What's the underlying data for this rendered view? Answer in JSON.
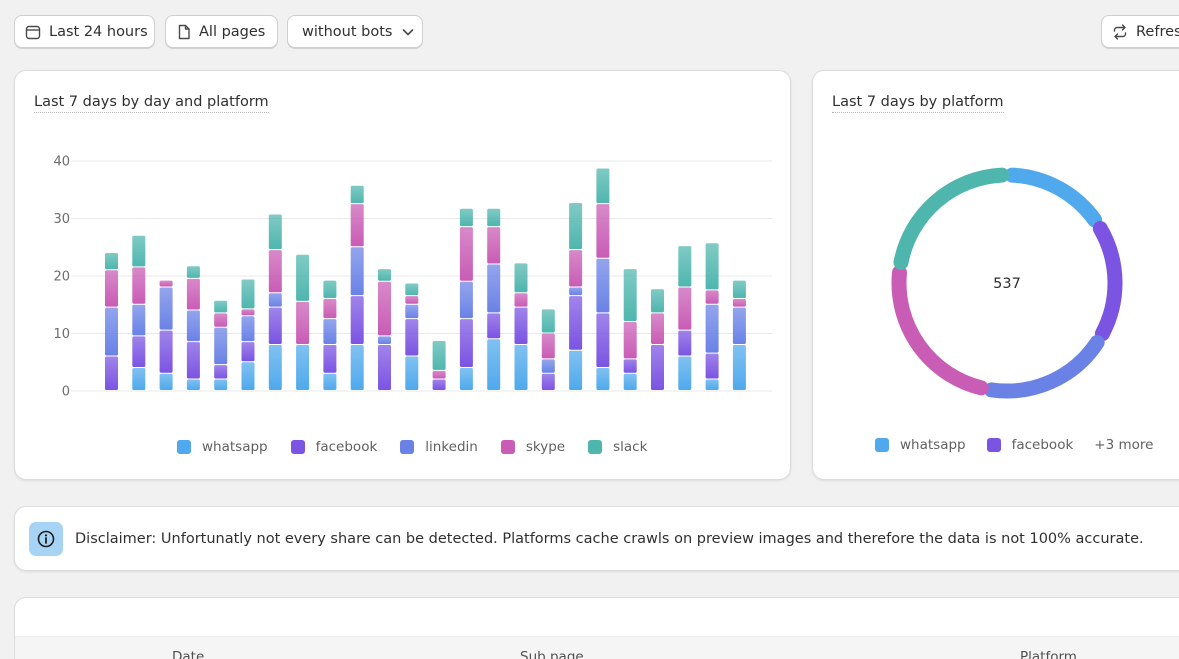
{
  "toolbar": {
    "range_label": "Last 24 hours",
    "pages_label": "All pages",
    "bots_label": "without bots",
    "refresh_label": "Refresh"
  },
  "bar_card": {
    "title": "Last 7 days by day and platform"
  },
  "donut_card": {
    "title": "Last 7 days by platform",
    "total": "537",
    "legend": [
      "whatsapp",
      "facebook"
    ],
    "more_label": "+3 more"
  },
  "colors": {
    "whatsapp": "#4fa9ec",
    "facebook": "#7b54e2",
    "linkedin": "#6a82e6",
    "skype": "#c95cb5",
    "slack": "#4fb6ae"
  },
  "disclaimer": {
    "text": "Disclaimer: Unfortunatly not every share can be detected. Platforms cache crawls on preview images and therefore the data is not 100% accurate."
  },
  "table": {
    "columns": [
      "Date",
      "Sub page",
      "Platform"
    ]
  },
  "chart_data": [
    {
      "type": "bar",
      "stacked": true,
      "title": "Last 7 days by day and platform",
      "ylim": [
        0,
        40
      ],
      "yticks": [
        0,
        10,
        20,
        30,
        40
      ],
      "grid": true,
      "legend_position": "bottom",
      "series": [
        {
          "name": "whatsapp",
          "values": [
            0,
            4,
            3,
            2,
            2,
            5,
            8,
            8,
            3,
            8,
            0,
            6,
            0,
            4,
            9,
            8,
            0,
            7,
            4,
            3,
            0,
            6,
            2,
            8
          ]
        },
        {
          "name": "facebook",
          "values": [
            6,
            5.5,
            7.5,
            6.5,
            2.5,
            3.5,
            6.5,
            0,
            5,
            8.5,
            8,
            6.5,
            2,
            8.5,
            4.5,
            6.5,
            3,
            9.5,
            9.5,
            2.5,
            8,
            4.5,
            4.5,
            0
          ]
        },
        {
          "name": "linkedin",
          "values": [
            8.5,
            5.5,
            7.5,
            5.5,
            6.5,
            4.5,
            2.5,
            0,
            4.5,
            8.5,
            1.5,
            2.5,
            0,
            6.5,
            8.5,
            0,
            2.5,
            1.5,
            9.5,
            0,
            0,
            0,
            8.5,
            6.5
          ]
        },
        {
          "name": "skype",
          "values": [
            6.5,
            6.5,
            1.2,
            5.5,
            2.5,
            1.2,
            7.5,
            7.5,
            3.5,
            7.5,
            9.5,
            1.5,
            1.5,
            9.5,
            6.5,
            2.5,
            4.5,
            6.5,
            9.5,
            6.5,
            5.5,
            7.5,
            2.5,
            1.5
          ]
        },
        {
          "name": "slack",
          "values": [
            3,
            5.5,
            0,
            2.2,
            2.2,
            5.2,
            6.2,
            8.2,
            3.2,
            3.2,
            2.2,
            2.2,
            5.2,
            3.2,
            3.2,
            5.2,
            4.2,
            8.2,
            6.2,
            9.2,
            4.2,
            7.2,
            8.2,
            3.2
          ]
        }
      ]
    },
    {
      "type": "pie",
      "donut": true,
      "title": "Last 7 days by platform",
      "total": 537,
      "legend_position": "bottom",
      "categories": [
        "whatsapp",
        "facebook",
        "linkedin",
        "skype",
        "slack"
      ],
      "values": [
        85,
        95,
        105,
        130,
        122
      ]
    }
  ]
}
